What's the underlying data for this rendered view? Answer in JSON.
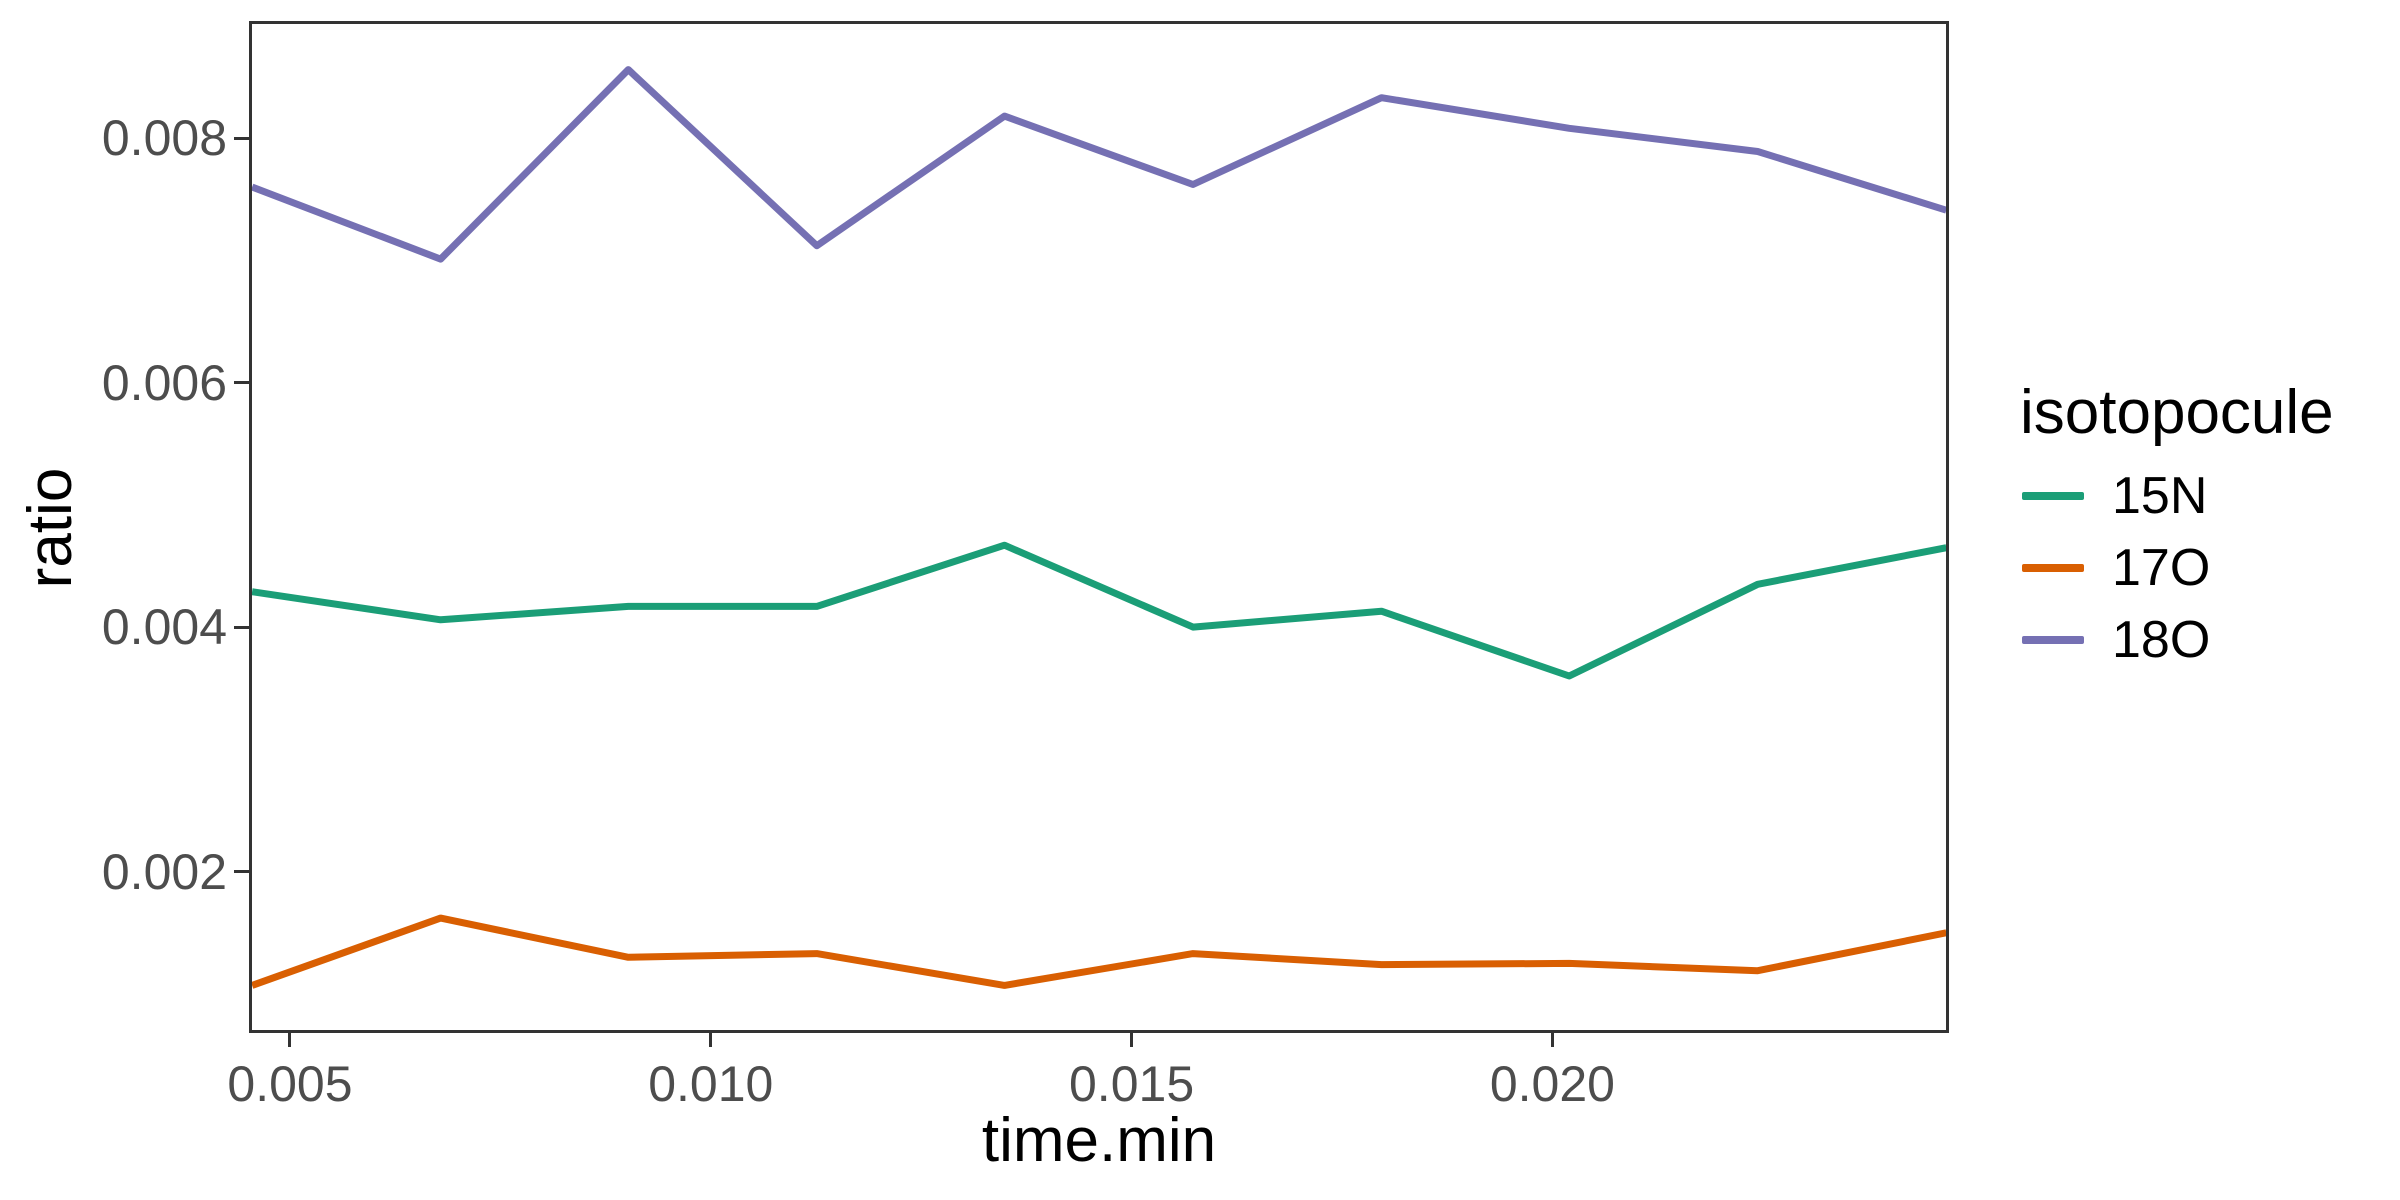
{
  "page": {
    "background": "#FFFFFF"
  },
  "axes": {
    "x": {
      "title": "time.min",
      "ticks": [
        {
          "value": 0.005,
          "label": "0.005"
        },
        {
          "value": 0.01,
          "label": "0.010"
        },
        {
          "value": 0.015,
          "label": "0.015"
        },
        {
          "value": 0.02,
          "label": "0.020"
        }
      ]
    },
    "y": {
      "title": "ratio",
      "ticks": [
        {
          "value": 0.008,
          "label": "0.008"
        },
        {
          "value": 0.006,
          "label": "0.006"
        },
        {
          "value": 0.004,
          "label": "0.004"
        },
        {
          "value": 0.002,
          "label": "0.002"
        }
      ]
    }
  },
  "legend": {
    "title": "isotopocule",
    "entries": [
      {
        "label": "15N",
        "color": "#1B9E77"
      },
      {
        "label": "17O",
        "color": "#D95F02"
      },
      {
        "label": "18O",
        "color": "#7570B3"
      }
    ]
  },
  "chart_data": {
    "type": "line",
    "title": "",
    "xlabel": "time.min",
    "ylabel": "ratio",
    "legend_title": "isotopocule",
    "legend_position": "right",
    "grid": false,
    "xlim": [
      0.004549,
      0.024677
    ],
    "ylim": [
      0.000705,
      0.008933
    ],
    "x_ticks": [
      0.005,
      0.01,
      0.015,
      0.02
    ],
    "y_ticks": [
      0.002,
      0.004,
      0.006,
      0.008
    ],
    "x": [
      0.00455,
      0.00679,
      0.00902,
      0.01126,
      0.01349,
      0.01573,
      0.01797,
      0.0202,
      0.02244,
      0.02468
    ],
    "series": [
      {
        "name": "15N",
        "color": "#1B9E77",
        "values": [
          0.00429,
          0.00406,
          0.00417,
          0.00417,
          0.00467,
          0.004,
          0.00413,
          0.0036,
          0.00435,
          0.00465
        ]
      },
      {
        "name": "17O",
        "color": "#D95F02",
        "values": [
          0.00107,
          0.00162,
          0.0013,
          0.00133,
          0.00107,
          0.00133,
          0.00124,
          0.00125,
          0.00119,
          0.0015
        ]
      },
      {
        "name": "18O",
        "color": "#7570B3",
        "values": [
          0.0076,
          0.00701,
          0.00856,
          0.00712,
          0.00818,
          0.00762,
          0.00833,
          0.00808,
          0.00789,
          0.00741
        ]
      }
    ]
  },
  "style": {
    "panel_border_color": "#333333",
    "tick_color": "#333333",
    "tick_label_color": "#4D4D4D",
    "line_width": 7
  }
}
